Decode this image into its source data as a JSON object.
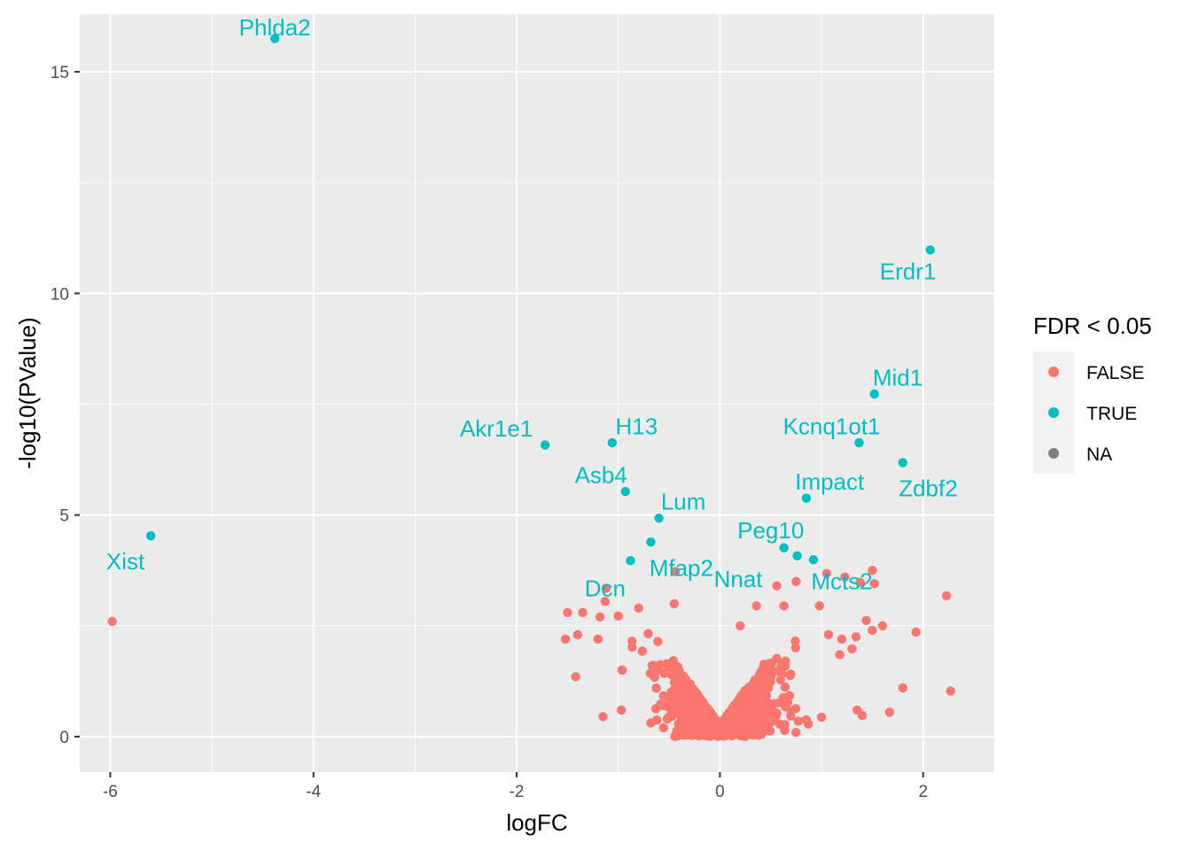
{
  "chart_data": {
    "type": "scatter",
    "title": "",
    "xlabel": "logFC",
    "ylabel": "-log10(PValue)",
    "xlim": [
      -6.3,
      2.7
    ],
    "ylim": [
      -0.8,
      16.3
    ],
    "x_ticks": [
      -6,
      -4,
      -2,
      0,
      2
    ],
    "x_tick_labels": [
      "-6",
      "-4",
      "-2",
      "0",
      "2"
    ],
    "y_ticks": [
      0,
      5,
      10,
      15
    ],
    "y_tick_labels": [
      "0",
      "5",
      "10",
      "15"
    ],
    "grid": true,
    "legend": {
      "title": "FDR < 0.05",
      "placement": "right",
      "entries": [
        {
          "label": "FALSE",
          "color": "#F8766D"
        },
        {
          "label": "TRUE",
          "color": "#00BFC4"
        },
        {
          "label": "NA",
          "color": "#7F7F7F"
        }
      ]
    },
    "significant_points": [
      {
        "x": -4.38,
        "y": 15.75,
        "label": "Phlda2",
        "label_x": -4.38,
        "label_y": 16.0
      },
      {
        "x": 2.07,
        "y": 10.98,
        "label": "Erdr1",
        "label_x": 1.85,
        "label_y": 10.5
      },
      {
        "x": 1.52,
        "y": 7.73,
        "label": "Mid1",
        "label_x": 1.75,
        "label_y": 8.1
      },
      {
        "x": -1.72,
        "y": 6.58,
        "label": "Akr1e1",
        "label_x": -2.2,
        "label_y": 6.95
      },
      {
        "x": -1.06,
        "y": 6.63,
        "label": "H13",
        "label_x": -0.82,
        "label_y": 7.0
      },
      {
        "x": 1.37,
        "y": 6.63,
        "label": "Kcnq1ot1",
        "label_x": 1.1,
        "label_y": 7.0
      },
      {
        "x": 1.8,
        "y": 6.18,
        "label": "Zdbf2",
        "label_x": 2.05,
        "label_y": 5.6
      },
      {
        "x": -0.93,
        "y": 5.53,
        "label": "Asb4",
        "label_x": -1.17,
        "label_y": 5.9
      },
      {
        "x": 0.85,
        "y": 5.38,
        "label": "Impact",
        "label_x": 1.08,
        "label_y": 5.75
      },
      {
        "x": -0.6,
        "y": 4.93,
        "label": "Lum",
        "label_x": -0.36,
        "label_y": 5.3
      },
      {
        "x": -5.6,
        "y": 4.53,
        "label": "Xist",
        "label_x": -5.85,
        "label_y": 3.95
      },
      {
        "x": 0.63,
        "y": 4.26,
        "label": "Peg10",
        "label_x": 0.5,
        "label_y": 4.65
      },
      {
        "x": -0.68,
        "y": 4.39
      },
      {
        "x": 0.76,
        "y": 4.08
      },
      {
        "x": 0.92,
        "y": 3.99
      },
      {
        "x": -0.88,
        "y": 3.97,
        "label": "Mfap2",
        "label_x": -0.38,
        "label_y": 3.8
      },
      {
        "x": null,
        "y": null,
        "label": "Nnat",
        "label_x": 0.18,
        "label_y": 3.55
      },
      {
        "x": null,
        "y": null,
        "label": "Mcts2",
        "label_x": 1.2,
        "label_y": 3.5
      },
      {
        "x": null,
        "y": null,
        "label": "Dcn",
        "label_x": -1.13,
        "label_y": 3.35
      }
    ],
    "nonsignificant_outliers": [
      {
        "x": -5.98,
        "y": 2.6
      },
      {
        "x": 2.23,
        "y": 3.18
      },
      {
        "x": 2.27,
        "y": 1.03
      },
      {
        "x": 1.93,
        "y": 2.36
      },
      {
        "x": 1.8,
        "y": 1.1
      },
      {
        "x": 1.6,
        "y": 2.5
      },
      {
        "x": 1.5,
        "y": 3.75
      },
      {
        "x": 1.52,
        "y": 3.45
      },
      {
        "x": 1.5,
        "y": 2.4
      },
      {
        "x": 1.44,
        "y": 2.62
      },
      {
        "x": 1.38,
        "y": 3.48
      },
      {
        "x": 1.34,
        "y": 2.25
      },
      {
        "x": 1.3,
        "y": 1.98
      },
      {
        "x": 1.23,
        "y": 3.6
      },
      {
        "x": 1.2,
        "y": 2.2
      },
      {
        "x": 1.18,
        "y": 1.85
      },
      {
        "x": 1.05,
        "y": 3.68
      },
      {
        "x": 1.07,
        "y": 2.3
      },
      {
        "x": 0.98,
        "y": 2.95
      },
      {
        "x": 0.75,
        "y": 3.5
      },
      {
        "x": 0.56,
        "y": 3.4
      },
      {
        "x": 0.63,
        "y": 2.95
      },
      {
        "x": 0.36,
        "y": 2.95
      },
      {
        "x": 0.2,
        "y": 2.5
      },
      {
        "x": 0.85,
        "y": 0.38
      },
      {
        "x": 1.0,
        "y": 0.44
      },
      {
        "x": 1.35,
        "y": 0.6
      },
      {
        "x": 1.4,
        "y": 0.48
      },
      {
        "x": 1.67,
        "y": 0.55
      },
      {
        "x": 0.77,
        "y": 0.35
      },
      {
        "x": -1.12,
        "y": 3.35
      },
      {
        "x": -1.13,
        "y": 3.05
      },
      {
        "x": -1.0,
        "y": 2.72
      },
      {
        "x": -1.5,
        "y": 2.8
      },
      {
        "x": -1.35,
        "y": 2.8
      },
      {
        "x": -1.18,
        "y": 2.7
      },
      {
        "x": -1.52,
        "y": 2.2
      },
      {
        "x": -1.4,
        "y": 2.3
      },
      {
        "x": -1.2,
        "y": 2.2
      },
      {
        "x": -1.42,
        "y": 1.35
      },
      {
        "x": -1.15,
        "y": 0.45
      },
      {
        "x": -0.97,
        "y": 0.6
      },
      {
        "x": -0.44,
        "y": 3.72
      },
      {
        "x": -0.45,
        "y": 3.0
      },
      {
        "x": -0.8,
        "y": 2.9
      }
    ],
    "bulk_description": "thousands of non-significant genes (FDR < 0.05 = FALSE) forming a V-shaped cloud around logFC 0, -log10(PValue) 0 to about 2.5"
  },
  "colors": {
    "panel_background": "#EBEBEB",
    "grid_major": "#FFFFFF",
    "false": "#F8766D",
    "true": "#00BFC4",
    "na": "#7F7F7F"
  }
}
